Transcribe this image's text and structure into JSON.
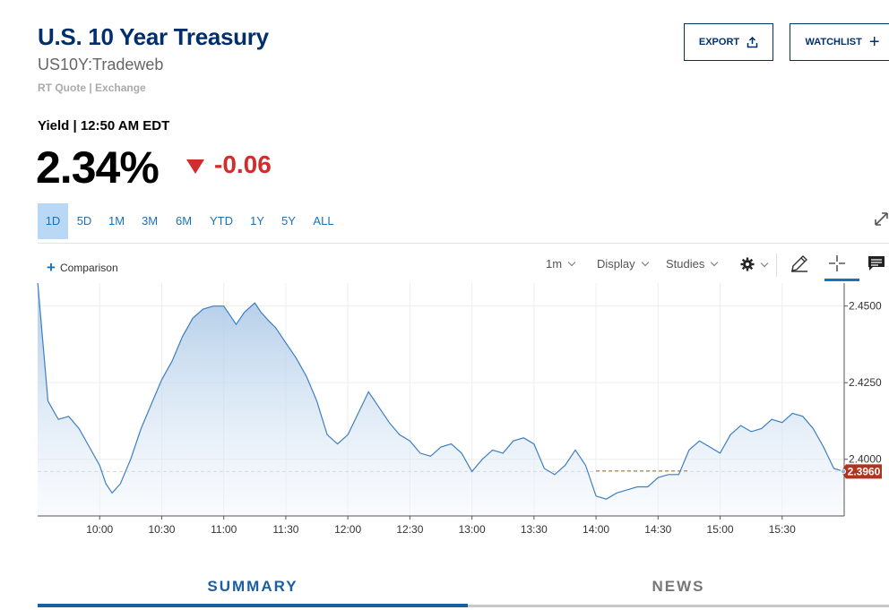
{
  "header": {
    "title": "U.S. 10 Year Treasury",
    "symbol": "US10Y:Tradeweb",
    "quote_source": "RT Quote | Exchange",
    "export_label": "EXPORT",
    "watchlist_label": "WATCHLIST"
  },
  "quote": {
    "yield_label": "Yield | 12:50 AM EDT",
    "value": "2.34%",
    "change": "-0.06",
    "change_color": "#d22d2d"
  },
  "ranges": [
    {
      "label": "1D",
      "active": true
    },
    {
      "label": "5D",
      "active": false
    },
    {
      "label": "1M",
      "active": false
    },
    {
      "label": "3M",
      "active": false
    },
    {
      "label": "6M",
      "active": false
    },
    {
      "label": "YTD",
      "active": false
    },
    {
      "label": "1Y",
      "active": false
    },
    {
      "label": "5Y",
      "active": false
    },
    {
      "label": "ALL",
      "active": false
    }
  ],
  "toolbar": {
    "comparison_label": "Comparison",
    "interval_label": "1m",
    "display_label": "Display",
    "studies_label": "Studies"
  },
  "chart_data": {
    "type": "area",
    "x_tick_labels": [
      "10:00",
      "10:30",
      "11:00",
      "11:30",
      "12:00",
      "12:30",
      "13:00",
      "13:30",
      "14:00",
      "14:30",
      "15:00",
      "15:30"
    ],
    "y_tick_labels": [
      "2.4500",
      "2.4250",
      "2.4000"
    ],
    "ylim": [
      2.3815,
      2.4575
    ],
    "x_range": [
      "09:30",
      "16:00"
    ],
    "last_value_label": "2.3960",
    "last_value": 2.396,
    "series_color": "#3d7fc1",
    "last_value_color": "#b0341e",
    "grid": true,
    "series": [
      {
        "x": [
          "09:30",
          "09:35",
          "09:40",
          "09:45",
          "09:50",
          "09:55",
          "10:00",
          "10:03",
          "10:06",
          "10:10",
          "10:15",
          "10:20",
          "10:25",
          "10:30",
          "10:35",
          "10:40",
          "10:45",
          "10:50",
          "10:55",
          "11:00",
          "11:03",
          "11:06",
          "11:10",
          "11:15",
          "11:18",
          "11:22",
          "11:25",
          "11:30",
          "11:35",
          "11:40",
          "11:45",
          "11:50",
          "11:55",
          "12:00",
          "12:05",
          "12:10",
          "12:15",
          "12:20",
          "12:25",
          "12:30",
          "12:35",
          "12:40",
          "12:45",
          "12:50",
          "12:55",
          "13:00",
          "13:05",
          "13:10",
          "13:15",
          "13:20",
          "13:25",
          "13:30",
          "13:35",
          "13:40",
          "13:45",
          "13:50",
          "13:55",
          "14:00",
          "14:05",
          "14:10",
          "14:15",
          "14:20",
          "14:25",
          "14:30",
          "14:35",
          "14:40",
          "14:45",
          "14:50",
          "14:55",
          "15:00",
          "15:05",
          "15:10",
          "15:15",
          "15:20",
          "15:25",
          "15:30",
          "15:35",
          "15:40",
          "15:45",
          "15:50",
          "15:55",
          "16:00"
        ],
        "y": [
          2.458,
          2.419,
          2.413,
          2.414,
          2.41,
          2.404,
          2.398,
          2.392,
          2.389,
          2.392,
          2.4,
          2.41,
          2.418,
          2.426,
          2.432,
          2.44,
          2.446,
          2.449,
          2.45,
          2.45,
          2.447,
          2.444,
          2.448,
          2.451,
          2.448,
          2.445,
          2.443,
          2.438,
          2.433,
          2.427,
          2.419,
          2.408,
          2.405,
          2.408,
          2.415,
          2.422,
          2.417,
          2.412,
          2.408,
          2.406,
          2.402,
          2.401,
          2.404,
          2.405,
          2.402,
          2.396,
          2.4,
          2.403,
          2.402,
          2.406,
          2.407,
          2.405,
          2.397,
          2.395,
          2.398,
          2.403,
          2.398,
          2.388,
          2.387,
          2.389,
          2.39,
          2.391,
          2.391,
          2.394,
          2.395,
          2.395,
          2.403,
          2.406,
          2.404,
          2.402,
          2.408,
          2.411,
          2.409,
          2.41,
          2.413,
          2.412,
          2.415,
          2.414,
          2.41,
          2.404,
          2.397,
          2.396
        ]
      }
    ],
    "reference_segment": {
      "from": "14:00",
      "to": "14:45",
      "y": 2.3962
    }
  },
  "tabs": [
    {
      "label": "SUMMARY",
      "active": true
    },
    {
      "label": "NEWS",
      "active": false
    }
  ]
}
